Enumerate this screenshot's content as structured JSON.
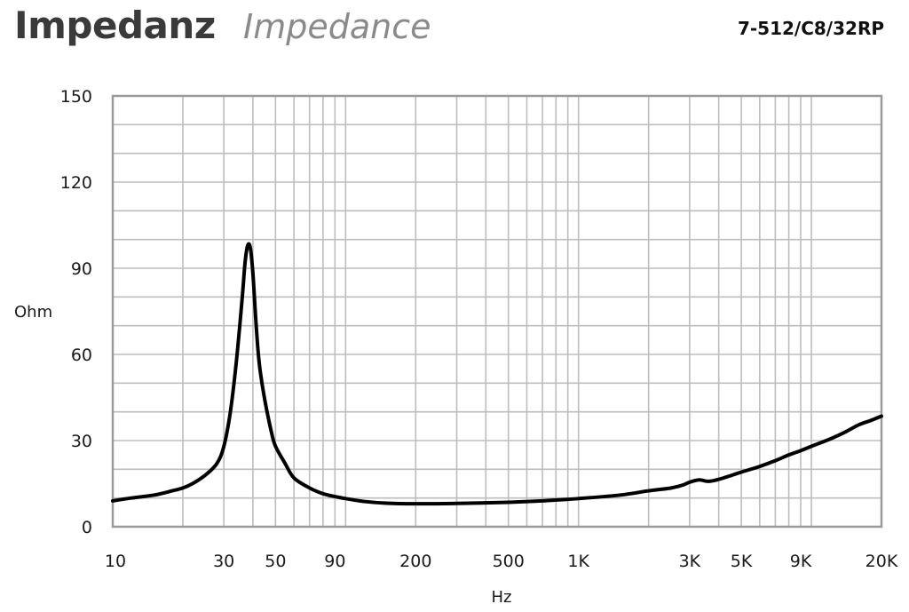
{
  "header": {
    "title_de": "Impedanz",
    "title_en": "Impedance",
    "model": "7-512/C8/32RP"
  },
  "chart_data": {
    "type": "line",
    "xlabel": "Hz",
    "ylabel": "Ohm",
    "xscale": "log",
    "xlim": [
      10,
      20000
    ],
    "ylim": [
      0,
      150
    ],
    "grid": true,
    "x_ticks": [
      {
        "value": 10,
        "label": "10"
      },
      {
        "value": 30,
        "label": "30"
      },
      {
        "value": 50,
        "label": "50"
      },
      {
        "value": 90,
        "label": "90"
      },
      {
        "value": 200,
        "label": "200"
      },
      {
        "value": 500,
        "label": "500"
      },
      {
        "value": 1000,
        "label": "1K"
      },
      {
        "value": 3000,
        "label": "3K"
      },
      {
        "value": 5000,
        "label": "5K"
      },
      {
        "value": 9000,
        "label": "9K"
      },
      {
        "value": 20000,
        "label": "20K"
      }
    ],
    "y_ticks": [
      {
        "value": 0,
        "label": "0"
      },
      {
        "value": 30,
        "label": "30"
      },
      {
        "value": 60,
        "label": "60"
      },
      {
        "value": 90,
        "label": "90"
      },
      {
        "value": 120,
        "label": "120"
      },
      {
        "value": 150,
        "label": "150"
      }
    ],
    "series": [
      {
        "x": [
          10,
          12,
          15,
          18,
          20,
          22,
          25,
          28,
          30,
          32,
          34,
          36,
          37,
          38,
          39,
          40,
          41,
          42,
          43,
          45,
          48,
          50,
          55,
          60,
          70,
          80,
          90,
          100,
          120,
          150,
          200,
          300,
          500,
          700,
          1000,
          1500,
          2000,
          2500,
          2800,
          3000,
          3300,
          3600,
          4000,
          5000,
          6000,
          7000,
          8000,
          9000,
          10000,
          12000,
          14000,
          16000,
          18000,
          20000
        ],
        "y": [
          9,
          10,
          11,
          12.5,
          13.5,
          15,
          18,
          22,
          28,
          40,
          58,
          80,
          92,
          98,
          97,
          88,
          74,
          62,
          54,
          44,
          33,
          28,
          22,
          17,
          13.5,
          11.5,
          10.5,
          9.8,
          8.8,
          8.2,
          8,
          8.1,
          8.5,
          9,
          9.8,
          11,
          12.5,
          13.5,
          14.5,
          15.5,
          16.3,
          15.8,
          16.5,
          19,
          21,
          23,
          25,
          26.5,
          28,
          30.5,
          33,
          35.5,
          37,
          38.5
        ],
        "color": "#000000"
      }
    ]
  }
}
